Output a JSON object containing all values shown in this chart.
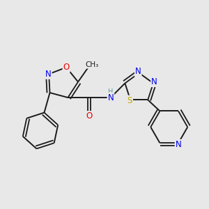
{
  "background_color": "#e8e8e8",
  "bond_color": "#1a1a1a",
  "atom_colors": {
    "N": "#0000ee",
    "O": "#ee0000",
    "S": "#bbaa00",
    "C": "#1a1a1a",
    "H": "#559999"
  },
  "font_size": 8.5,
  "lw": 1.4
}
